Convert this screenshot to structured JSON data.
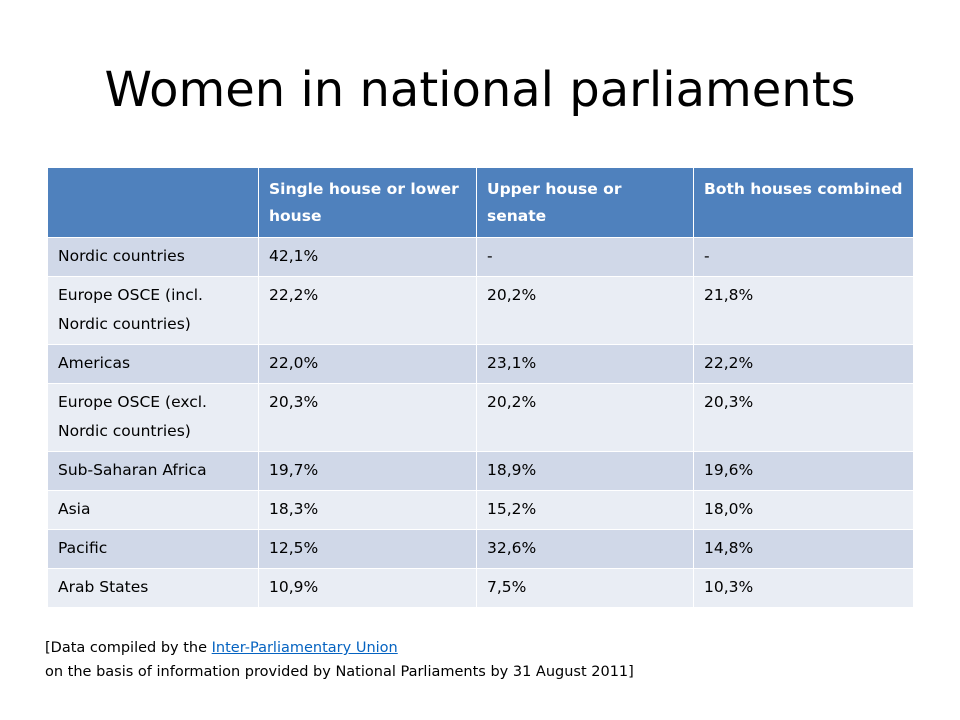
{
  "title": "Women in national parliaments",
  "colors": {
    "header": "#4f81bd",
    "row_dark": "#d0d8e8",
    "row_light": "#e9edf4",
    "link": "#0563c1"
  },
  "table": {
    "headers": [
      "",
      "Single house or lower house",
      "Upper house or senate",
      "Both houses combined"
    ],
    "rows": [
      {
        "region": "Nordic countries",
        "single": "42,1%",
        "upper": "-",
        "both": "-",
        "tall": false
      },
      {
        "region": "Europe OSCE (incl. Nordic countries)",
        "single": "22,2%",
        "upper": "20,2%",
        "both": "21,8%",
        "tall": true
      },
      {
        "region": "Americas",
        "single": "22,0%",
        "upper": "23,1%",
        "both": "22,2%",
        "tall": false
      },
      {
        "region": "Europe OSCE (excl. Nordic countries)",
        "single": "20,3%",
        "upper": "20,2%",
        "both": "20,3%",
        "tall": true
      },
      {
        "region": "Sub-Saharan Africa",
        "single": "19,7%",
        "upper": "18,9%",
        "both": "19,6%",
        "tall": false
      },
      {
        "region": "Asia",
        "single": "18,3%",
        "upper": "15,2%",
        "both": "18,0%",
        "tall": false
      },
      {
        "region": "Pacific",
        "single": "12,5%",
        "upper": "32,6%",
        "both": "14,8%",
        "tall": false
      },
      {
        "region": "Arab States",
        "single": "10,9%",
        "upper": "7,5%",
        "both": "10,3%",
        "tall": false
      }
    ]
  },
  "note": {
    "line1_prefix": "[Data compiled by the ",
    "link_text": "Inter-Parliamentary Union",
    "line2": "on the basis of information provided by National Parliaments by 31 August 2011]"
  }
}
